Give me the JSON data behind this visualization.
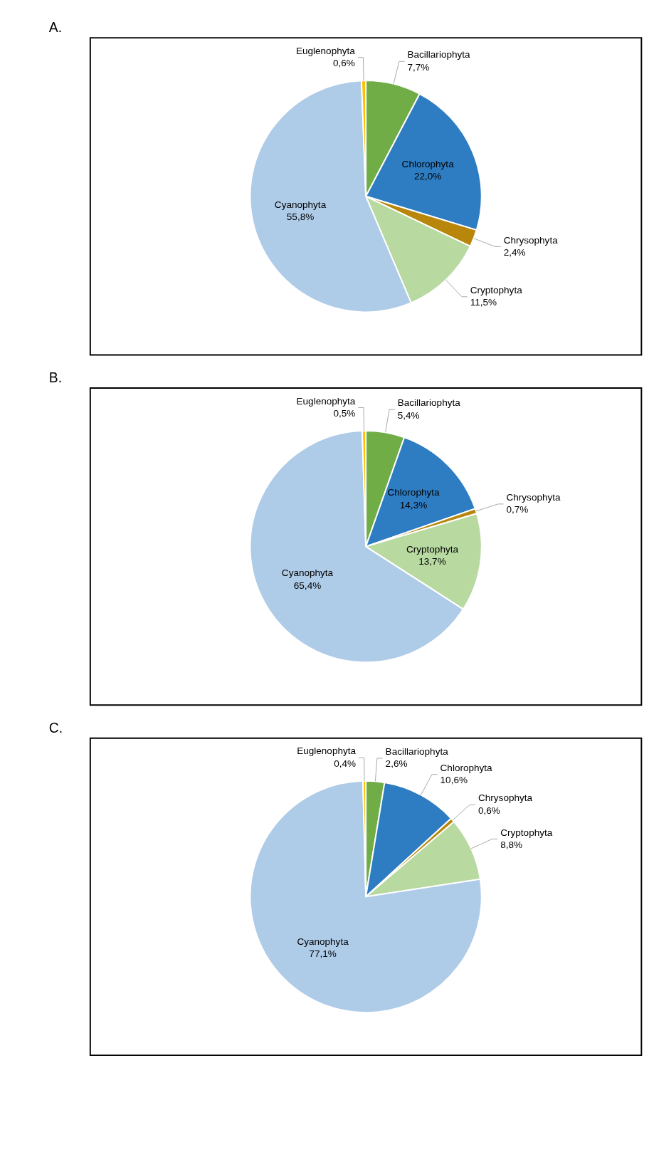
{
  "chart_data": [
    {
      "type": "pie",
      "title": "A.",
      "categories": [
        "Bacillariophyta",
        "Chlorophyta",
        "Chrysophyta",
        "Cryptophyta",
        "Cyanophyta",
        "Euglenophyta"
      ],
      "values": [
        7.7,
        22.0,
        2.4,
        11.5,
        55.8,
        0.6
      ],
      "value_labels": [
        "7,7%",
        "22,0%",
        "2,4%",
        "11,5%",
        "55,8%",
        "0,6%"
      ],
      "colors": [
        "#70ad47",
        "#2e7dc2",
        "#b8860b",
        "#b8d9a0",
        "#aecbe8",
        "#ffc000"
      ]
    },
    {
      "type": "pie",
      "title": "B.",
      "categories": [
        "Bacillariophyta",
        "Chlorophyta",
        "Chrysophyta",
        "Cryptophyta",
        "Cyanophyta",
        "Euglenophyta"
      ],
      "values": [
        5.4,
        14.3,
        0.7,
        13.7,
        65.4,
        0.5
      ],
      "value_labels": [
        "5,4%",
        "14,3%",
        "0,7%",
        "13,7%",
        "65,4%",
        "0,5%"
      ],
      "colors": [
        "#70ad47",
        "#2e7dc2",
        "#b8860b",
        "#b8d9a0",
        "#aecbe8",
        "#ffc000"
      ]
    },
    {
      "type": "pie",
      "title": "C.",
      "categories": [
        "Bacillariophyta",
        "Chlorophyta",
        "Chrysophyta",
        "Cryptophyta",
        "Cyanophyta",
        "Euglenophyta"
      ],
      "values": [
        2.6,
        10.6,
        0.6,
        8.8,
        77.1,
        0.4
      ],
      "value_labels": [
        "2,6%",
        "10,6%",
        "0,6%",
        "8,8%",
        "77,1%",
        "0,4%"
      ],
      "colors": [
        "#70ad47",
        "#2e7dc2",
        "#b8860b",
        "#b8d9a0",
        "#aecbe8",
        "#ffc000"
      ]
    }
  ]
}
